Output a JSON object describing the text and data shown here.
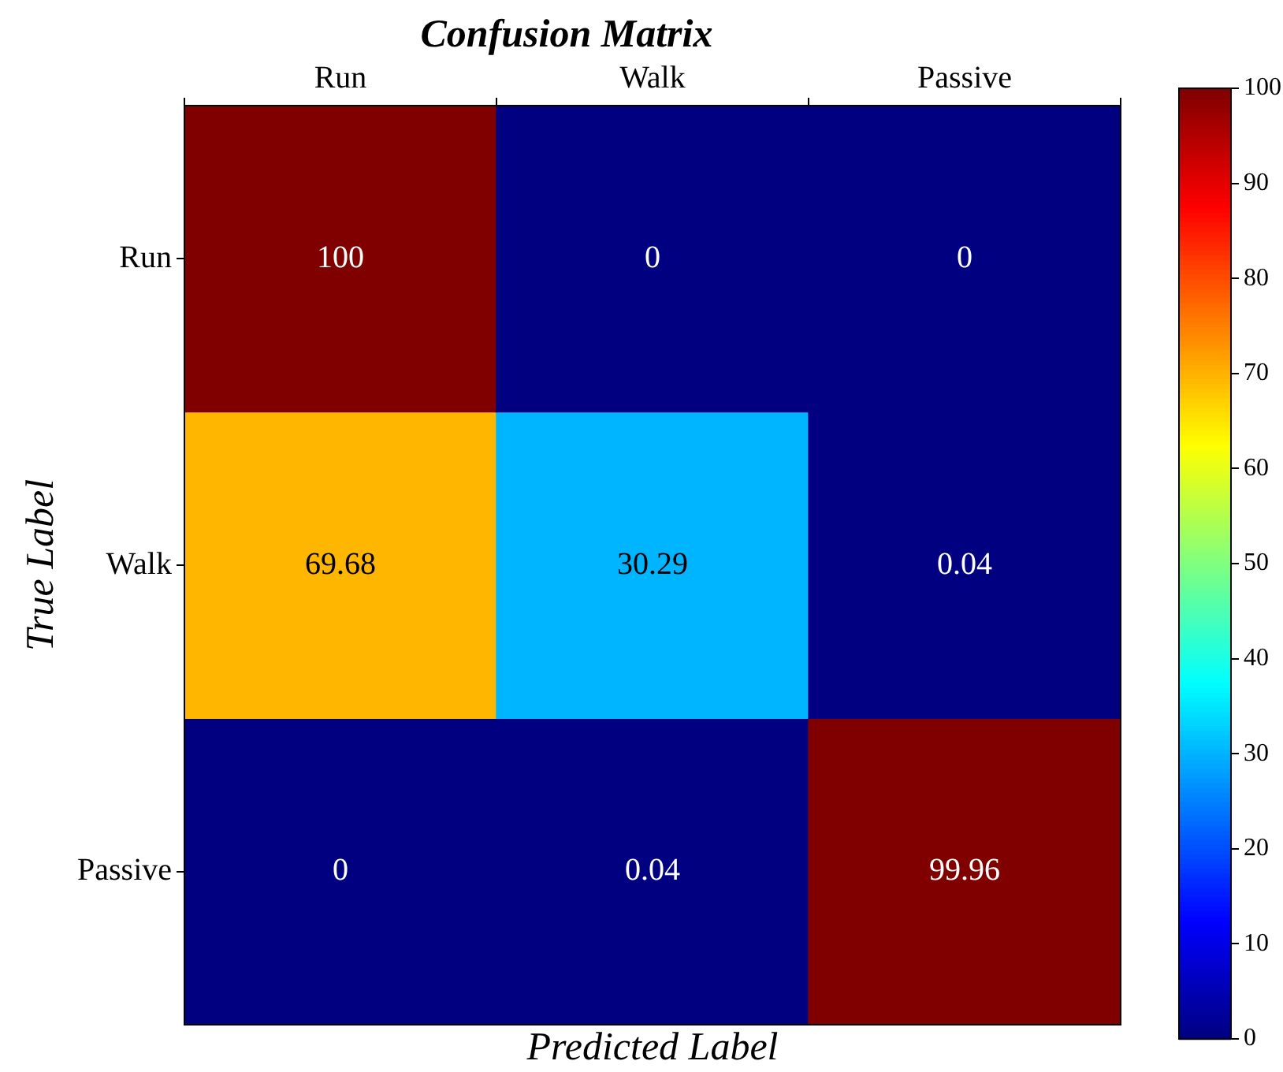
{
  "chart_data": {
    "type": "heatmap",
    "title": "Confusion Matrix",
    "xlabel": "Predicted Label",
    "ylabel": "True Label",
    "categories": [
      "Run",
      "Walk",
      "Passive"
    ],
    "y_categories": [
      "Run",
      "Walk",
      "Passive"
    ],
    "cells": [
      [
        100,
        0,
        0
      ],
      [
        69.68,
        30.29,
        0.04
      ],
      [
        0,
        0.04,
        99.96
      ]
    ],
    "data_labels": true,
    "clim": [
      0,
      100
    ],
    "cticks": [
      0,
      10,
      20,
      30,
      40,
      50,
      60,
      70,
      80,
      90,
      100
    ]
  }
}
